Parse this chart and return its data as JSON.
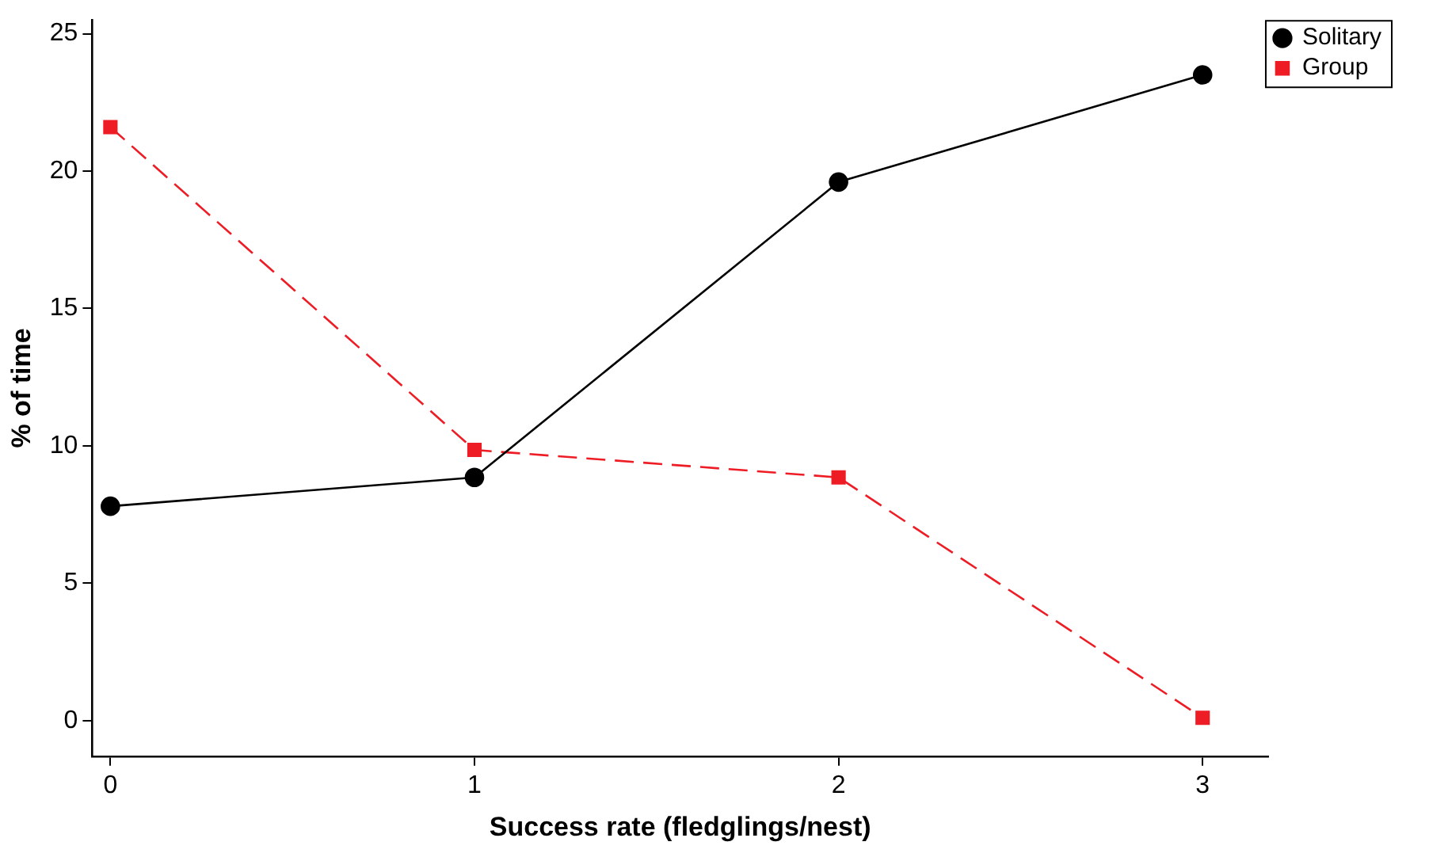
{
  "chart_data": {
    "type": "line",
    "xlabel": "Success rate (fledglings/nest)",
    "ylabel": "% of time",
    "x": [
      0,
      1,
      2,
      3
    ],
    "series": [
      {
        "name": "Solitary",
        "color": "#000000",
        "values": [
          7.8,
          8.85,
          19.6,
          23.5
        ],
        "marker": "circle",
        "line_style": "solid"
      },
      {
        "name": "Group",
        "color": "#ee1c24",
        "values": [
          21.6,
          9.85,
          8.85,
          0.1
        ],
        "marker": "square",
        "line_style": "dashed"
      }
    ],
    "xlim": [
      -0.05,
      3.18
    ],
    "xticks": [
      0,
      1,
      2,
      3
    ],
    "ylim": [
      -1.3,
      25.5
    ],
    "yticks": [
      0,
      5,
      10,
      15,
      20,
      25
    ],
    "grid": false,
    "legend": "top right"
  }
}
